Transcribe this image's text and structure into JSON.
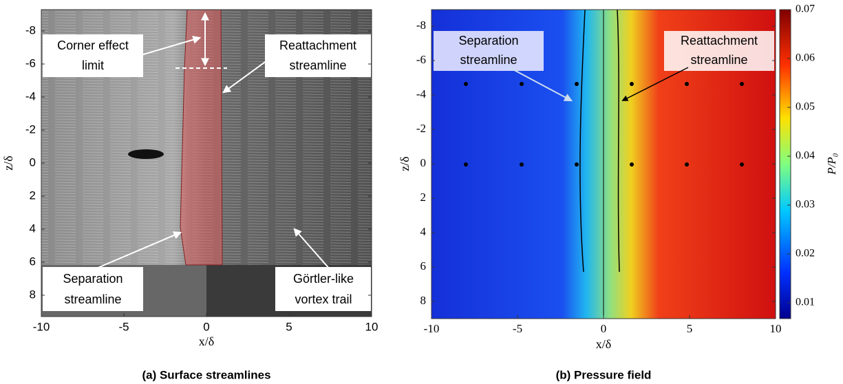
{
  "panels": [
    {
      "caption": "(a) Surface streamlines",
      "xlabel": "x/δ",
      "ylabel": "z/δ",
      "xticks": [
        -10,
        -5,
        0,
        5,
        10
      ],
      "yticks": [
        -8,
        -6,
        -4,
        -2,
        0,
        2,
        4,
        6,
        8
      ],
      "annotations": [
        {
          "lines": [
            "Corner effect",
            "limit"
          ]
        },
        {
          "lines": [
            "Reattachment",
            "streamline"
          ]
        },
        {
          "lines": [
            "Separation",
            "streamline"
          ]
        },
        {
          "lines": [
            "Görtler-like",
            "vortex trail"
          ]
        }
      ]
    },
    {
      "caption": "(b) Pressure field",
      "xlabel": "x/δ",
      "ylabel": "z/δ",
      "xticks": [
        -10,
        -5,
        0,
        5,
        10
      ],
      "yticks": [
        -8,
        -6,
        -4,
        -2,
        0,
        2,
        4,
        6,
        8
      ],
      "annotations": [
        {
          "lines": [
            "Separation",
            "streamline"
          ]
        },
        {
          "lines": [
            "Reattachment",
            "streamline"
          ]
        }
      ]
    }
  ],
  "colorbar": {
    "label": "P/P₀",
    "ticks": [
      0.01,
      0.02,
      0.03,
      0.04,
      0.05,
      0.06,
      0.07
    ]
  }
}
